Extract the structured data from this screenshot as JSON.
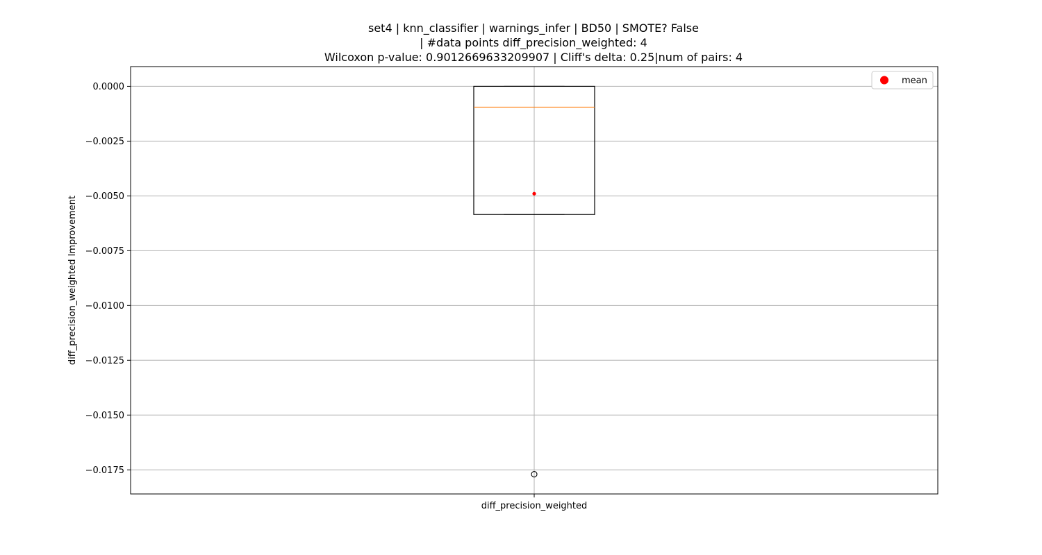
{
  "chart_data": {
    "type": "box",
    "title_lines": [
      "set4 | knn_classifier | warnings_infer | BD50 | SMOTE? False",
      "| #data points diff_precision_weighted: 4",
      "Wilcoxon p-value: 0.9012669633209907 | Cliff's delta: 0.25|num of pairs: 4"
    ],
    "xlabel": "",
    "ylabel": "diff_precision_weighted Improvement",
    "categories": [
      "diff_precision_weighted"
    ],
    "ylim": [
      -0.0186,
      0.0009
    ],
    "yticks": [
      0.0,
      -0.0025,
      -0.005,
      -0.0075,
      -0.01,
      -0.0125,
      -0.015,
      -0.0175
    ],
    "ytick_labels": [
      "0.0000",
      "−0.0025",
      "−0.0050",
      "−0.0075",
      "−0.0100",
      "−0.0125",
      "−0.0150",
      "−0.0175"
    ],
    "grid": true,
    "boxes": [
      {
        "category": "diff_precision_weighted",
        "whisker_high": 0.0,
        "q3": 0.0,
        "median": -0.00095,
        "q1": -0.00585,
        "whisker_low": -0.00585,
        "mean": -0.0049,
        "outliers": [
          -0.0177
        ]
      }
    ],
    "legend": {
      "position": "top-right",
      "entries": [
        {
          "label": "mean",
          "color": "#ff0000"
        }
      ]
    },
    "colors": {
      "box": "#000000",
      "median": "#ff7f0e",
      "mean": "#ff0000",
      "grid": "#b0b0b0"
    }
  }
}
